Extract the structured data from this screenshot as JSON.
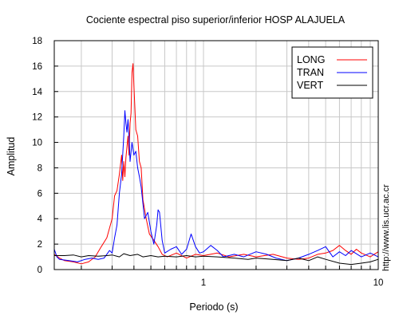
{
  "chart_data": {
    "type": "line",
    "title": "Cociente espectral piso superior/inferior  HOSP ALAJUELA",
    "xlabel": "Periodo (s)",
    "ylabel": "Amplitud",
    "x_scale": "log",
    "xlim": [
      0.14,
      10
    ],
    "ylim": [
      0,
      18
    ],
    "x_tick_labels": [
      {
        "value": 1,
        "label": "1"
      },
      {
        "value": 10,
        "label": "10"
      }
    ],
    "x_gridlines": [
      0.2,
      0.3,
      0.4,
      0.5,
      0.6,
      0.7,
      0.8,
      0.9,
      1,
      2,
      3,
      4,
      5,
      6,
      7,
      8,
      9,
      10
    ],
    "y_ticks": [
      0,
      2,
      4,
      6,
      8,
      10,
      12,
      14,
      16,
      18
    ],
    "grid": true,
    "legend_position": "top-right",
    "series": [
      {
        "name": "LONG",
        "color": "#ff0000",
        "points": [
          [
            0.14,
            1.2
          ],
          [
            0.15,
            0.9
          ],
          [
            0.16,
            0.7
          ],
          [
            0.18,
            0.6
          ],
          [
            0.2,
            0.45
          ],
          [
            0.22,
            0.6
          ],
          [
            0.24,
            1.0
          ],
          [
            0.26,
            1.8
          ],
          [
            0.28,
            2.5
          ],
          [
            0.3,
            4.0
          ],
          [
            0.31,
            5.8
          ],
          [
            0.32,
            6.2
          ],
          [
            0.33,
            7.5
          ],
          [
            0.34,
            9.0
          ],
          [
            0.345,
            7.0
          ],
          [
            0.35,
            8.5
          ],
          [
            0.355,
            7.3
          ],
          [
            0.36,
            8.8
          ],
          [
            0.37,
            10.5
          ],
          [
            0.375,
            9.0
          ],
          [
            0.38,
            11.5
          ],
          [
            0.385,
            12.3
          ],
          [
            0.39,
            15.5
          ],
          [
            0.395,
            16.2
          ],
          [
            0.4,
            14.5
          ],
          [
            0.41,
            11.0
          ],
          [
            0.42,
            10.5
          ],
          [
            0.43,
            8.5
          ],
          [
            0.44,
            8.0
          ],
          [
            0.45,
            5.5
          ],
          [
            0.47,
            4.0
          ],
          [
            0.49,
            2.8
          ],
          [
            0.52,
            2.3
          ],
          [
            0.55,
            1.8
          ],
          [
            0.58,
            1.2
          ],
          [
            0.62,
            1.0
          ],
          [
            0.7,
            1.3
          ],
          [
            0.8,
            0.9
          ],
          [
            0.9,
            1.2
          ],
          [
            1.0,
            1.1
          ],
          [
            1.2,
            1.3
          ],
          [
            1.4,
            1.0
          ],
          [
            1.7,
            1.2
          ],
          [
            2.0,
            1.0
          ],
          [
            2.5,
            1.2
          ],
          [
            3.0,
            0.9
          ],
          [
            3.5,
            0.8
          ],
          [
            4.0,
            0.9
          ],
          [
            4.5,
            1.2
          ],
          [
            5.0,
            1.3
          ],
          [
            5.5,
            1.5
          ],
          [
            6.0,
            1.9
          ],
          [
            6.5,
            1.5
          ],
          [
            7.0,
            1.2
          ],
          [
            7.5,
            1.6
          ],
          [
            8.0,
            1.3
          ],
          [
            9.0,
            1.0
          ],
          [
            10.0,
            1.4
          ]
        ]
      },
      {
        "name": "TRAN",
        "color": "#0000ff",
        "points": [
          [
            0.14,
            1.6
          ],
          [
            0.145,
            1.0
          ],
          [
            0.15,
            0.8
          ],
          [
            0.17,
            0.7
          ],
          [
            0.19,
            0.6
          ],
          [
            0.21,
            0.8
          ],
          [
            0.23,
            0.9
          ],
          [
            0.25,
            0.8
          ],
          [
            0.27,
            0.9
          ],
          [
            0.29,
            1.5
          ],
          [
            0.3,
            1.3
          ],
          [
            0.31,
            2.5
          ],
          [
            0.32,
            3.5
          ],
          [
            0.33,
            6.0
          ],
          [
            0.34,
            7.5
          ],
          [
            0.35,
            10.5
          ],
          [
            0.355,
            12.5
          ],
          [
            0.36,
            11.5
          ],
          [
            0.365,
            10.8
          ],
          [
            0.37,
            11.8
          ],
          [
            0.375,
            10.5
          ],
          [
            0.38,
            8.5
          ],
          [
            0.39,
            10.0
          ],
          [
            0.4,
            9.0
          ],
          [
            0.41,
            9.3
          ],
          [
            0.42,
            8.0
          ],
          [
            0.43,
            7.3
          ],
          [
            0.44,
            6.5
          ],
          [
            0.46,
            4.0
          ],
          [
            0.48,
            4.5
          ],
          [
            0.5,
            3.0
          ],
          [
            0.52,
            2.0
          ],
          [
            0.54,
            3.5
          ],
          [
            0.55,
            4.7
          ],
          [
            0.56,
            4.5
          ],
          [
            0.58,
            2.3
          ],
          [
            0.6,
            1.3
          ],
          [
            0.65,
            1.6
          ],
          [
            0.7,
            1.8
          ],
          [
            0.75,
            1.2
          ],
          [
            0.8,
            1.6
          ],
          [
            0.85,
            2.8
          ],
          [
            0.9,
            1.8
          ],
          [
            0.95,
            1.3
          ],
          [
            1.0,
            1.4
          ],
          [
            1.1,
            1.9
          ],
          [
            1.2,
            1.5
          ],
          [
            1.3,
            1.0
          ],
          [
            1.5,
            1.2
          ],
          [
            1.7,
            1.0
          ],
          [
            2.0,
            1.4
          ],
          [
            2.3,
            1.2
          ],
          [
            2.6,
            0.9
          ],
          [
            3.0,
            0.7
          ],
          [
            3.5,
            0.9
          ],
          [
            4.0,
            1.2
          ],
          [
            4.5,
            1.5
          ],
          [
            5.0,
            1.8
          ],
          [
            5.5,
            1.0
          ],
          [
            6.0,
            1.4
          ],
          [
            6.5,
            1.1
          ],
          [
            7.0,
            1.5
          ],
          [
            8.0,
            1.0
          ],
          [
            9.0,
            1.3
          ],
          [
            10.0,
            1.0
          ]
        ]
      },
      {
        "name": "VERT",
        "color": "#000000",
        "points": [
          [
            0.14,
            1.1
          ],
          [
            0.16,
            1.1
          ],
          [
            0.18,
            1.15
          ],
          [
            0.2,
            1.0
          ],
          [
            0.22,
            1.1
          ],
          [
            0.25,
            1.05
          ],
          [
            0.28,
            1.1
          ],
          [
            0.3,
            1.15
          ],
          [
            0.33,
            1.0
          ],
          [
            0.35,
            1.25
          ],
          [
            0.38,
            1.1
          ],
          [
            0.42,
            1.2
          ],
          [
            0.45,
            1.0
          ],
          [
            0.5,
            1.1
          ],
          [
            0.55,
            1.0
          ],
          [
            0.6,
            1.05
          ],
          [
            0.7,
            1.0
          ],
          [
            0.8,
            1.1
          ],
          [
            0.9,
            1.0
          ],
          [
            1.0,
            1.05
          ],
          [
            1.2,
            1.0
          ],
          [
            1.5,
            0.9
          ],
          [
            1.8,
            0.8
          ],
          [
            2.0,
            0.9
          ],
          [
            2.5,
            0.8
          ],
          [
            3.0,
            0.7
          ],
          [
            3.5,
            0.9
          ],
          [
            4.0,
            0.7
          ],
          [
            4.5,
            1.0
          ],
          [
            5.0,
            0.8
          ],
          [
            6.0,
            0.5
          ],
          [
            7.0,
            0.4
          ],
          [
            8.0,
            0.5
          ],
          [
            9.0,
            0.6
          ],
          [
            10.0,
            0.8
          ]
        ]
      }
    ]
  },
  "side_text": "http://www.lis.ucr.ac.cr"
}
